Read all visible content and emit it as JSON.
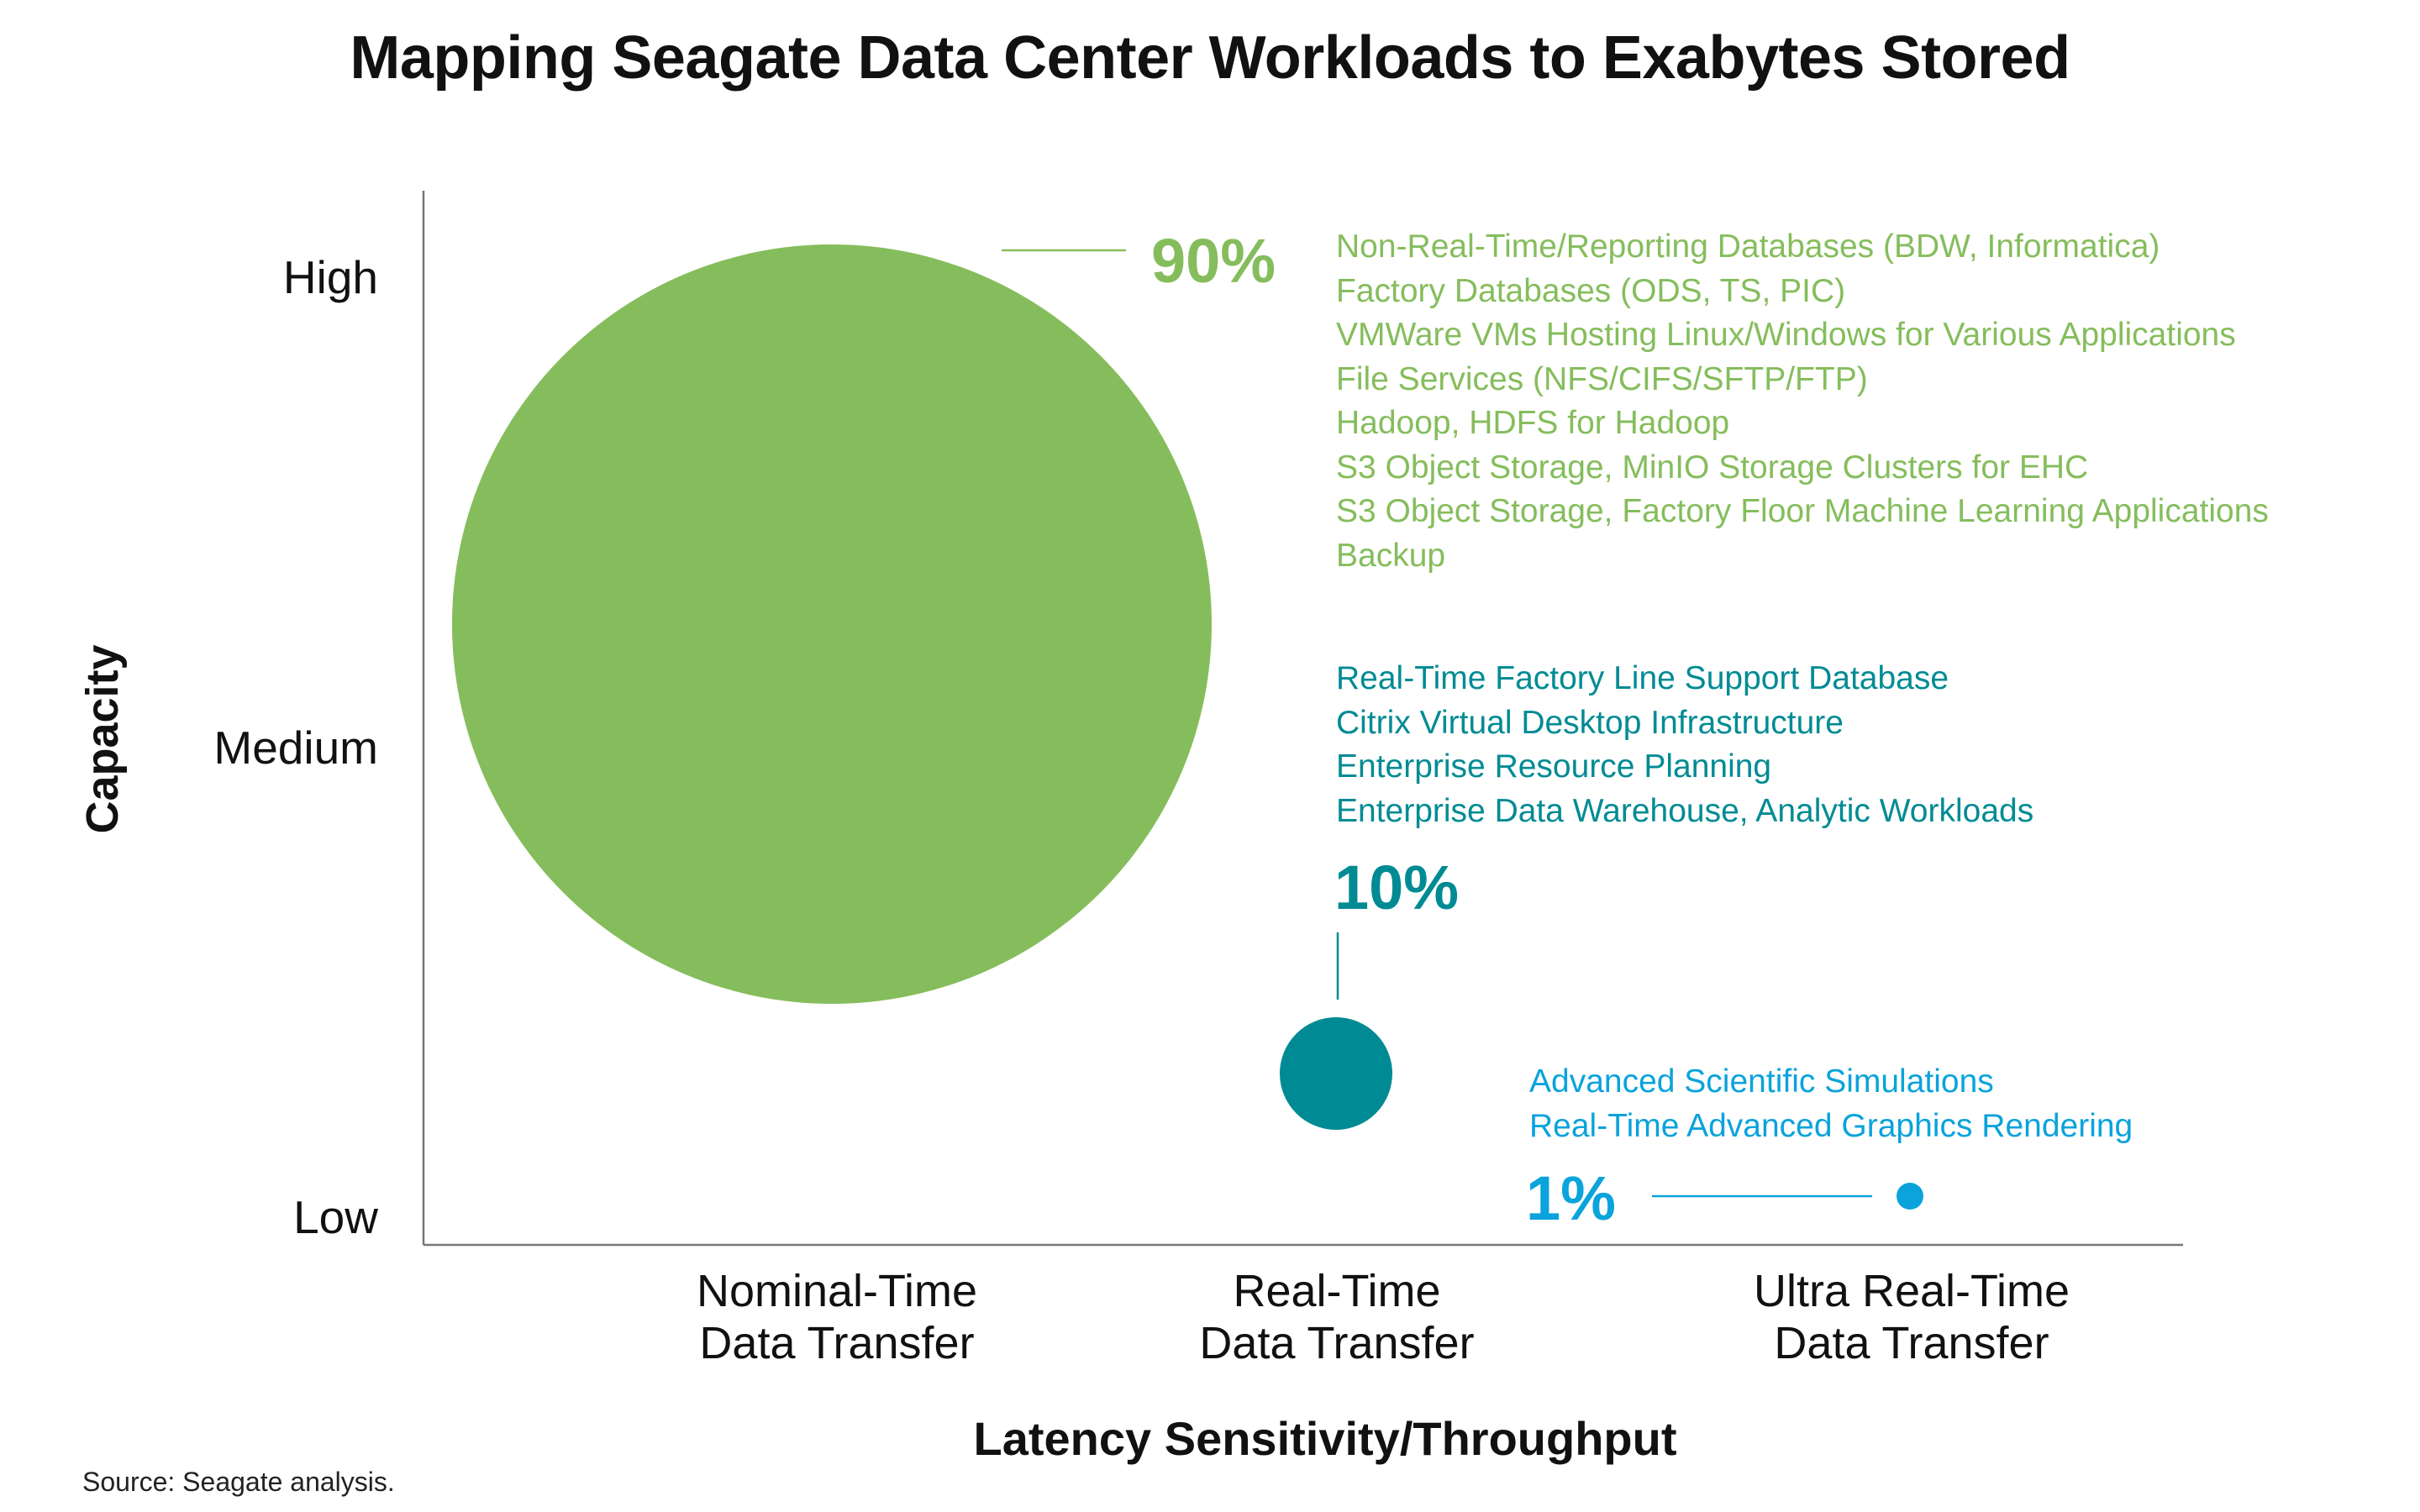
{
  "title": "Mapping Seagate Data Center Workloads to Exabytes Stored",
  "source": "Source: Seagate analysis.",
  "colors": {
    "green": "#85bd5c",
    "teal": "#008b94",
    "blue": "#0aa3dc",
    "axis": "#777777",
    "text": "#111111"
  },
  "chart_data": {
    "type": "scatter",
    "title": "Mapping Seagate Data Center Workloads to Exabytes Stored",
    "xlabel": "Latency Sensitivity/Throughput",
    "ylabel": "Capacity",
    "x_categories": [
      "Nominal-Time\nData Transfer",
      "Real-Time\nData Transfer",
      "Ultra Real-Time\nData Transfer"
    ],
    "y_categories": [
      "Low",
      "Medium",
      "High"
    ],
    "series": [
      {
        "percent_label": "90%",
        "share": 90,
        "x": "Nominal-Time Data Transfer",
        "y": "Medium-High",
        "color": "green",
        "workloads": [
          "Non-Real-Time/Reporting Databases (BDW, Informatica)",
          "Factory Databases (ODS, TS, PIC)",
          "VMWare VMs Hosting Linux/Windows for Various Applications",
          "File Services (NFS/CIFS/SFTP/FTP)",
          "Hadoop, HDFS for Hadoop",
          "S3 Object Storage, MinIO Storage Clusters for EHC",
          "S3 Object Storage, Factory Floor Machine Learning Applications",
          "Backup"
        ]
      },
      {
        "percent_label": "10%",
        "share": 10,
        "x": "Real-Time Data Transfer",
        "y": "Low",
        "color": "teal",
        "workloads": [
          "Real-Time Factory Line Support Database",
          "Citrix Virtual Desktop Infrastructure",
          "Enterprise Resource Planning",
          "Enterprise Data Warehouse, Analytic Workloads"
        ]
      },
      {
        "percent_label": "1%",
        "share": 1,
        "x": "Ultra Real-Time Data Transfer",
        "y": "Low",
        "color": "blue",
        "workloads": [
          "Advanced Scientific Simulations",
          "Real-Time Advanced Graphics Rendering"
        ]
      }
    ]
  }
}
